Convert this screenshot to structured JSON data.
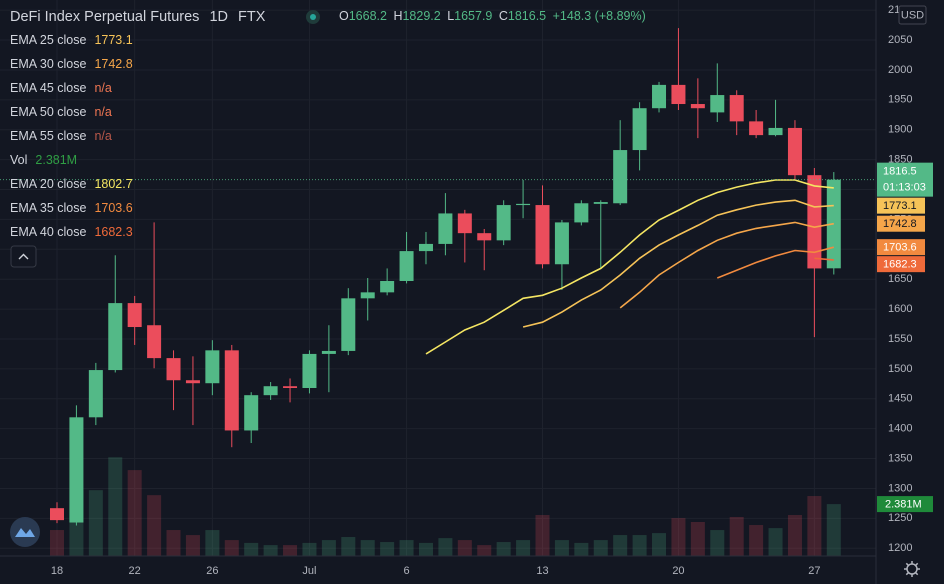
{
  "chart_data": {
    "type": "candlestick",
    "title": "DeFi Index Perpetual Futures",
    "interval": "1D",
    "exchange": "FTX",
    "ohlc_labels": [
      "O",
      "H",
      "L",
      "C"
    ],
    "change": "+148.3 (+8.89%)",
    "currency": "USD",
    "countdown": "01:13:03",
    "categories": [
      "18",
      null,
      null,
      null,
      "22",
      null,
      null,
      null,
      "26",
      null,
      null,
      null,
      null,
      "Jul",
      null,
      null,
      null,
      null,
      "6",
      null,
      null,
      null,
      null,
      null,
      null,
      "13",
      null,
      null,
      null,
      null,
      null,
      null,
      "20",
      null,
      null,
      null,
      null,
      null,
      null,
      "27",
      null
    ],
    "open": [
      1267,
      1243,
      1419,
      1498,
      1610,
      1573,
      1518,
      1481,
      1476,
      1531,
      1397,
      1456,
      1471,
      1468,
      1525,
      1530,
      1618,
      1628,
      1647,
      1697,
      1709,
      1760,
      1727,
      1715,
      1774,
      1774,
      1675,
      1745,
      1776,
      1777,
      1866,
      1936,
      1975,
      1943,
      1929,
      1958,
      1914,
      1891,
      1903,
      1824,
      1668.2
    ],
    "high": [
      1277,
      1439,
      1510,
      1690,
      1622,
      1745,
      1531,
      1521,
      1548,
      1540,
      1461,
      1478,
      1484,
      1531,
      1573,
      1635,
      1652,
      1668,
      1729,
      1729,
      1794,
      1766,
      1734,
      1782,
      1816,
      1807,
      1749,
      1782,
      1782,
      1916,
      1946,
      1980,
      2070,
      1986,
      2011,
      1966,
      1933,
      1950,
      1916,
      1836,
      1829.2
    ],
    "low": [
      1242,
      1238,
      1406,
      1494,
      1540,
      1501,
      1431,
      1406,
      1456,
      1369,
      1376,
      1448,
      1444,
      1459,
      1461,
      1523,
      1581,
      1623,
      1643,
      1675,
      1690,
      1678,
      1665,
      1707,
      1752,
      1668,
      1632,
      1740,
      1668,
      1774,
      1832,
      1929,
      1933,
      1886,
      1913,
      1891,
      1886,
      1889,
      1816,
      1553,
      1657.9
    ],
    "close": [
      1247,
      1419,
      1498,
      1610,
      1570,
      1518,
      1481,
      1476,
      1531,
      1397,
      1456,
      1471,
      1468,
      1525,
      1530,
      1618,
      1628,
      1647,
      1697,
      1709,
      1760,
      1727,
      1715,
      1774,
      1776,
      1675,
      1745,
      1777,
      1779,
      1866,
      1936,
      1975,
      1943,
      1936,
      1958,
      1914,
      1891,
      1903,
      1824,
      1668,
      1816.5
    ],
    "up_color": "#53b987",
    "down_color": "#eb4d5c",
    "series": [
      {
        "name": "EMA 25 close",
        "type": "line",
        "color": "#f6c358",
        "values": [
          null,
          null,
          null,
          null,
          null,
          null,
          null,
          null,
          null,
          null,
          null,
          null,
          null,
          null,
          null,
          null,
          null,
          null,
          null,
          null,
          null,
          null,
          null,
          null,
          1570,
          1578,
          1595,
          1615,
          1632,
          1657,
          1685,
          1707,
          1724,
          1740,
          1757,
          1766,
          1774,
          1779,
          1782,
          1771,
          1773.1
        ]
      },
      {
        "name": "EMA 30 close",
        "type": "line",
        "color": "#f5a64a",
        "values": [
          null,
          null,
          null,
          null,
          null,
          null,
          null,
          null,
          null,
          null,
          null,
          null,
          null,
          null,
          null,
          null,
          null,
          null,
          null,
          null,
          null,
          null,
          null,
          null,
          null,
          null,
          null,
          null,
          null,
          1602,
          1628,
          1657,
          1678,
          1698,
          1715,
          1727,
          1735,
          1740,
          1745,
          1737,
          1742.8
        ]
      },
      {
        "name": "EMA 45 close",
        "type": "line",
        "color": "#ee7552",
        "label": "n/a"
      },
      {
        "name": "EMA 50 close",
        "type": "line",
        "color": "#ee7552",
        "label": "n/a"
      },
      {
        "name": "EMA 55 close",
        "type": "line",
        "color": "#b9584a",
        "label": "n/a"
      },
      {
        "name": "Vol",
        "type": "volume",
        "color": "#2f9e44",
        "label": "2.381M",
        "values": [
          1.19,
          3.02,
          3.02,
          4.53,
          3.94,
          2.79,
          1.19,
          0.96,
          1.19,
          0.73,
          0.6,
          0.5,
          0.5,
          0.6,
          0.73,
          0.87,
          0.73,
          0.64,
          0.73,
          0.6,
          0.82,
          0.73,
          0.5,
          0.64,
          0.73,
          1.88,
          0.73,
          0.6,
          0.73,
          0.96,
          0.96,
          1.05,
          1.74,
          1.56,
          1.19,
          1.79,
          1.42,
          1.28,
          1.88,
          2.75,
          2.381
        ]
      },
      {
        "name": "EMA 20 close",
        "type": "line",
        "color": "#f5e663",
        "values": [
          null,
          null,
          null,
          null,
          null,
          null,
          null,
          null,
          null,
          null,
          null,
          null,
          null,
          null,
          null,
          null,
          null,
          null,
          null,
          1525,
          1545,
          1565,
          1578,
          1598,
          1618,
          1623,
          1635,
          1652,
          1668,
          1695,
          1724,
          1749,
          1765,
          1782,
          1795,
          1804,
          1811,
          1816,
          1816,
          1806,
          1802.7
        ]
      },
      {
        "name": "EMA 35 close",
        "type": "line",
        "color": "#f28a3f",
        "values": [
          null,
          null,
          null,
          null,
          null,
          null,
          null,
          null,
          null,
          null,
          null,
          null,
          null,
          null,
          null,
          null,
          null,
          null,
          null,
          null,
          null,
          null,
          null,
          null,
          null,
          null,
          null,
          null,
          null,
          null,
          null,
          null,
          null,
          null,
          1652,
          1665,
          1678,
          1689,
          1698,
          1695,
          1703.6
        ]
      },
      {
        "name": "EMA 40 close",
        "type": "line",
        "color": "#ef6a3a",
        "values": [
          null,
          null,
          null,
          null,
          null,
          null,
          null,
          null,
          null,
          null,
          null,
          null,
          null,
          null,
          null,
          null,
          null,
          null,
          null,
          null,
          null,
          null,
          null,
          null,
          null,
          null,
          null,
          null,
          null,
          null,
          null,
          null,
          null,
          null,
          null,
          null,
          null,
          null,
          null,
          1685,
          1682.3
        ]
      }
    ],
    "ylim": [
      1187,
      2117
    ],
    "yticks": [
      1200,
      1250,
      1300,
      1350,
      1400,
      1450,
      1500,
      1550,
      1600,
      1650,
      1700,
      1750,
      1800,
      1850,
      1900,
      1950,
      2000,
      2050,
      2100
    ],
    "grid": true
  }
}
